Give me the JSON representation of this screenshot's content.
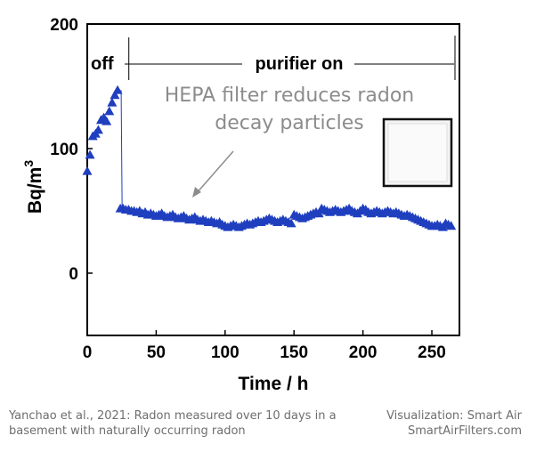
{
  "chart_data": {
    "type": "scatter",
    "xlabel": "Time / h",
    "ylabel": "Bq/m",
    "ylabel_superscript": "3",
    "xlim": [
      0,
      270
    ],
    "ylim": [
      -50,
      200
    ],
    "x_ticks": [
      "0",
      "50",
      "100",
      "150",
      "200",
      "250"
    ],
    "y_ticks": [
      "200",
      "100",
      "0"
    ],
    "x_tick_values": [
      0,
      50,
      100,
      150,
      200,
      250
    ],
    "y_tick_values": [
      200,
      100,
      0
    ],
    "phase_off_label": "off",
    "phase_on_label": "purifier on",
    "purifier_on_x": 25,
    "annotation_line1": "HEPA filter reduces radon",
    "annotation_line2": "decay particles",
    "marker_color": "#1f3fbf",
    "series": [
      {
        "x": [
          0,
          2,
          4,
          6,
          8,
          10,
          12,
          14,
          16,
          18,
          20,
          22,
          24,
          26,
          28,
          30,
          32,
          34,
          36,
          38,
          40,
          42,
          44,
          46,
          48,
          50,
          52,
          54,
          56,
          58,
          60,
          62,
          64,
          66,
          68,
          70,
          72,
          74,
          76,
          78,
          80,
          82,
          84,
          86,
          88,
          90,
          92,
          94,
          96,
          98,
          100,
          102,
          104,
          106,
          108,
          110,
          112,
          114,
          116,
          118,
          120,
          122,
          124,
          126,
          128,
          130,
          132,
          134,
          136,
          138,
          140,
          142,
          144,
          146,
          148,
          150,
          152,
          154,
          156,
          158,
          160,
          162,
          164,
          166,
          168,
          170,
          172,
          174,
          176,
          178,
          180,
          182,
          184,
          186,
          188,
          190,
          192,
          194,
          196,
          198,
          200,
          202,
          204,
          206,
          208,
          210,
          212,
          214,
          216,
          218,
          220,
          222,
          224,
          226,
          228,
          230,
          232,
          234,
          236,
          238,
          240,
          242,
          244,
          246,
          248,
          250,
          252,
          254,
          256,
          258,
          260,
          262,
          264
        ],
        "y": [
          82,
          95,
          110,
          112,
          115,
          123,
          125,
          122,
          130,
          137,
          143,
          147,
          52,
          52,
          51,
          51,
          50,
          50,
          49,
          50,
          48,
          49,
          47,
          48,
          47,
          46,
          47,
          48,
          46,
          45,
          46,
          47,
          45,
          44,
          45,
          46,
          44,
          43,
          44,
          45,
          43,
          42,
          43,
          42,
          41,
          42,
          41,
          40,
          41,
          39,
          38,
          37,
          38,
          39,
          38,
          37,
          38,
          39,
          40,
          39,
          40,
          41,
          42,
          41,
          42,
          43,
          44,
          43,
          42,
          41,
          42,
          43,
          42,
          41,
          40,
          47,
          46,
          45,
          44,
          45,
          46,
          47,
          48,
          49,
          48,
          52,
          51,
          50,
          49,
          50,
          51,
          50,
          49,
          50,
          51,
          52,
          50,
          49,
          48,
          50,
          52,
          51,
          49,
          48,
          49,
          50,
          49,
          48,
          49,
          50,
          49,
          48,
          49,
          48,
          47,
          46,
          47,
          46,
          45,
          44,
          43,
          42,
          41,
          40,
          39,
          38,
          38,
          39,
          38,
          37,
          40,
          39,
          38
        ]
      }
    ]
  },
  "footer": {
    "source_line1": "Yanchao et al., 2021: Radon measured over 10 days in a",
    "source_line2": "basement with naturally occurring radon",
    "credit_line1": "Visualization: Smart Air",
    "credit_line2": "SmartAirFilters.com"
  }
}
